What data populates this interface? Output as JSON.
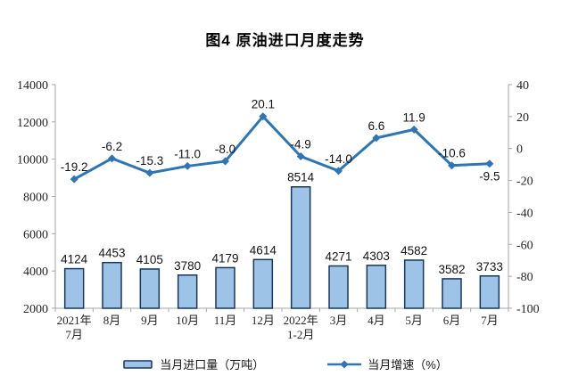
{
  "page": {
    "background": "#ffffff"
  },
  "chart_data": {
    "type": "bar",
    "combo": "bar+line",
    "title": "图4 原油进口月度走势",
    "categories": [
      [
        "2021年",
        "7月"
      ],
      [
        "8月"
      ],
      [
        "9月"
      ],
      [
        "10月"
      ],
      [
        "11月"
      ],
      [
        "12月"
      ],
      [
        "2022年",
        "1-2月"
      ],
      [
        "3月"
      ],
      [
        "4月"
      ],
      [
        "5月"
      ],
      [
        "6月"
      ],
      [
        "7月"
      ]
    ],
    "series": [
      {
        "name": "当月进口量（万吨）",
        "type": "bar",
        "axis": "left",
        "values": [
          4124,
          4453,
          4105,
          3780,
          4179,
          4614,
          8514,
          4271,
          4303,
          4582,
          3582,
          3733
        ],
        "labels": [
          "4124",
          "4453",
          "4105",
          "3780",
          "4179",
          "4614",
          "8514",
          "4271",
          "4303",
          "4582",
          "3582",
          "3733"
        ]
      },
      {
        "name": "当月增速（%）",
        "type": "line",
        "axis": "right",
        "values": [
          -19.2,
          -6.2,
          -15.3,
          -11.0,
          -8.0,
          20.1,
          -4.9,
          -14.0,
          6.6,
          11.9,
          -10.6,
          -9.5
        ],
        "labels": [
          "-19.2",
          "-6.2",
          "-15.3",
          "-11.0",
          "-8.0",
          "20.1",
          "-4.9",
          "-14.0",
          "6.6",
          "11.9",
          "-10.6",
          "-9.5"
        ],
        "label_below_indices": [
          11
        ]
      }
    ],
    "left_axis": {
      "min": 2000,
      "max": 14000,
      "step": 2000
    },
    "right_axis": {
      "min": -100,
      "max": 40,
      "step": 20
    },
    "grid": false,
    "legend_position": "bottom",
    "colors": {
      "bar_fill": "#9DC3E6",
      "bar_border": "#17375E",
      "line": "#2E75B6",
      "axis": "#A6A6A6"
    }
  }
}
